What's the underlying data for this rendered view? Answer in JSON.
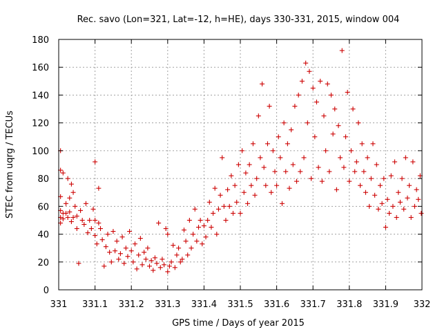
{
  "chart_data": {
    "type": "scatter",
    "title": "Rec. savo (Lon=321, Lat=-12, h=HE), days 330-331, 2015, window 004",
    "xlabel": "GPS time / Days of year 2015",
    "ylabel": "STEC from uqrg / TECUs",
    "xlim": [
      331,
      332
    ],
    "ylim": [
      0,
      180
    ],
    "xticks": [
      331,
      331.1,
      331.2,
      331.3,
      331.4,
      331.5,
      331.6,
      331.7,
      331.8,
      331.9,
      332
    ],
    "xtick_labels": [
      "331",
      "331.1",
      "331.2",
      "331.3",
      "331.4",
      "331.5",
      "331.6",
      "331.7",
      "331.8",
      "331.9",
      "332"
    ],
    "yticks": [
      0,
      20,
      40,
      60,
      80,
      100,
      120,
      140,
      160,
      180
    ],
    "ytick_labels": [
      "0",
      "20",
      "40",
      "60",
      "80",
      "100",
      "120",
      "140",
      "160",
      "180"
    ],
    "grid": true,
    "marker": "+",
    "color": "#cc0000",
    "series": [
      {
        "name": "STEC",
        "points": [
          [
            331.005,
            100
          ],
          [
            331.005,
            86
          ],
          [
            331.005,
            67
          ],
          [
            331.005,
            57
          ],
          [
            331.005,
            52
          ],
          [
            331.005,
            48
          ],
          [
            331.012,
            84
          ],
          [
            331.012,
            55
          ],
          [
            331.012,
            51
          ],
          [
            331.02,
            62
          ],
          [
            331.02,
            55
          ],
          [
            331.025,
            80
          ],
          [
            331.025,
            52
          ],
          [
            331.03,
            66
          ],
          [
            331.03,
            56
          ],
          [
            331.035,
            76
          ],
          [
            331.035,
            49
          ],
          [
            331.04,
            70
          ],
          [
            331.04,
            52
          ],
          [
            331.045,
            60
          ],
          [
            331.05,
            44
          ],
          [
            331.05,
            53
          ],
          [
            331.055,
            19
          ],
          [
            331.06,
            57
          ],
          [
            331.065,
            50
          ],
          [
            331.07,
            47
          ],
          [
            331.075,
            62
          ],
          [
            331.08,
            41
          ],
          [
            331.085,
            50
          ],
          [
            331.09,
            44
          ],
          [
            331.095,
            58
          ],
          [
            331.1,
            92
          ],
          [
            331.1,
            50
          ],
          [
            331.1,
            39
          ],
          [
            331.105,
            33
          ],
          [
            331.11,
            73
          ],
          [
            331.11,
            48
          ],
          [
            331.115,
            44
          ],
          [
            331.12,
            36
          ],
          [
            331.125,
            17
          ],
          [
            331.13,
            31
          ],
          [
            331.135,
            40
          ],
          [
            331.14,
            27
          ],
          [
            331.145,
            20
          ],
          [
            331.15,
            42
          ],
          [
            331.155,
            28
          ],
          [
            331.16,
            35
          ],
          [
            331.165,
            22
          ],
          [
            331.17,
            26
          ],
          [
            331.175,
            38
          ],
          [
            331.18,
            19
          ],
          [
            331.185,
            30
          ],
          [
            331.19,
            24
          ],
          [
            331.195,
            42
          ],
          [
            331.2,
            28
          ],
          [
            331.205,
            20
          ],
          [
            331.21,
            33
          ],
          [
            331.215,
            15
          ],
          [
            331.22,
            25
          ],
          [
            331.225,
            37
          ],
          [
            331.23,
            18
          ],
          [
            331.235,
            27
          ],
          [
            331.24,
            22
          ],
          [
            331.245,
            30
          ],
          [
            331.25,
            17
          ],
          [
            331.255,
            21
          ],
          [
            331.26,
            14
          ],
          [
            331.265,
            23
          ],
          [
            331.27,
            19
          ],
          [
            331.275,
            48
          ],
          [
            331.28,
            16
          ],
          [
            331.285,
            22
          ],
          [
            331.29,
            18
          ],
          [
            331.295,
            44
          ],
          [
            331.3,
            13
          ],
          [
            331.3,
            40
          ],
          [
            331.305,
            17
          ],
          [
            331.31,
            20
          ],
          [
            331.315,
            32
          ],
          [
            331.32,
            16
          ],
          [
            331.325,
            25
          ],
          [
            331.33,
            30
          ],
          [
            331.335,
            20
          ],
          [
            331.34,
            22
          ],
          [
            331.345,
            43
          ],
          [
            331.35,
            35
          ],
          [
            331.355,
            25
          ],
          [
            331.36,
            50
          ],
          [
            331.365,
            30
          ],
          [
            331.37,
            40
          ],
          [
            331.375,
            58
          ],
          [
            331.38,
            35
          ],
          [
            331.385,
            45
          ],
          [
            331.39,
            50
          ],
          [
            331.395,
            33
          ],
          [
            331.4,
            46
          ],
          [
            331.405,
            38
          ],
          [
            331.41,
            50
          ],
          [
            331.415,
            63
          ],
          [
            331.42,
            45
          ],
          [
            331.425,
            55
          ],
          [
            331.43,
            73
          ],
          [
            331.435,
            40
          ],
          [
            331.44,
            58
          ],
          [
            331.445,
            68
          ],
          [
            331.45,
            95
          ],
          [
            331.455,
            60
          ],
          [
            331.46,
            50
          ],
          [
            331.465,
            72
          ],
          [
            331.47,
            60
          ],
          [
            331.475,
            82
          ],
          [
            331.48,
            55
          ],
          [
            331.485,
            75
          ],
          [
            331.49,
            63
          ],
          [
            331.495,
            90
          ],
          [
            331.5,
            55
          ],
          [
            331.505,
            100
          ],
          [
            331.51,
            70
          ],
          [
            331.515,
            84
          ],
          [
            331.52,
            62
          ],
          [
            331.525,
            90
          ],
          [
            331.53,
            75
          ],
          [
            331.535,
            105
          ],
          [
            331.54,
            68
          ],
          [
            331.545,
            80
          ],
          [
            331.55,
            125
          ],
          [
            331.555,
            95
          ],
          [
            331.56,
            148
          ],
          [
            331.565,
            88
          ],
          [
            331.57,
            75
          ],
          [
            331.575,
            105
          ],
          [
            331.58,
            132
          ],
          [
            331.585,
            70
          ],
          [
            331.59,
            100
          ],
          [
            331.595,
            85
          ],
          [
            331.6,
            75
          ],
          [
            331.605,
            110
          ],
          [
            331.61,
            95
          ],
          [
            331.615,
            62
          ],
          [
            331.62,
            120
          ],
          [
            331.625,
            85
          ],
          [
            331.63,
            105
          ],
          [
            331.635,
            73
          ],
          [
            331.64,
            115
          ],
          [
            331.645,
            90
          ],
          [
            331.65,
            132
          ],
          [
            331.655,
            78
          ],
          [
            331.66,
            140
          ],
          [
            331.665,
            85
          ],
          [
            331.67,
            150
          ],
          [
            331.675,
            95
          ],
          [
            331.68,
            163
          ],
          [
            331.685,
            120
          ],
          [
            331.69,
            157
          ],
          [
            331.695,
            80
          ],
          [
            331.7,
            145
          ],
          [
            331.705,
            110
          ],
          [
            331.71,
            135
          ],
          [
            331.715,
            88
          ],
          [
            331.72,
            150
          ],
          [
            331.725,
            78
          ],
          [
            331.73,
            125
          ],
          [
            331.735,
            100
          ],
          [
            331.74,
            148
          ],
          [
            331.745,
            85
          ],
          [
            331.75,
            140
          ],
          [
            331.755,
            112
          ],
          [
            331.76,
            130
          ],
          [
            331.765,
            72
          ],
          [
            331.77,
            118
          ],
          [
            331.775,
            95
          ],
          [
            331.78,
            172
          ],
          [
            331.785,
            88
          ],
          [
            331.79,
            110
          ],
          [
            331.795,
            142
          ],
          [
            331.8,
            78
          ],
          [
            331.805,
            100
          ],
          [
            331.81,
            130
          ],
          [
            331.815,
            85
          ],
          [
            331.82,
            92
          ],
          [
            331.825,
            120
          ],
          [
            331.83,
            75
          ],
          [
            331.835,
            105
          ],
          [
            331.84,
            85
          ],
          [
            331.845,
            70
          ],
          [
            331.85,
            95
          ],
          [
            331.855,
            60
          ],
          [
            331.86,
            80
          ],
          [
            331.865,
            105
          ],
          [
            331.87,
            68
          ],
          [
            331.875,
            90
          ],
          [
            331.88,
            58
          ],
          [
            331.885,
            75
          ],
          [
            331.89,
            62
          ],
          [
            331.895,
            80
          ],
          [
            331.9,
            45
          ],
          [
            331.905,
            65
          ],
          [
            331.91,
            55
          ],
          [
            331.915,
            82
          ],
          [
            331.92,
            60
          ],
          [
            331.925,
            92
          ],
          [
            331.93,
            52
          ],
          [
            331.935,
            70
          ],
          [
            331.94,
            63
          ],
          [
            331.945,
            80
          ],
          [
            331.95,
            58
          ],
          [
            331.955,
            95
          ],
          [
            331.96,
            66
          ],
          [
            331.965,
            75
          ],
          [
            331.97,
            52
          ],
          [
            331.975,
            92
          ],
          [
            331.98,
            60
          ],
          [
            331.985,
            72
          ],
          [
            331.99,
            65
          ],
          [
            331.995,
            82
          ],
          [
            331.998,
            55
          ]
        ]
      }
    ]
  }
}
